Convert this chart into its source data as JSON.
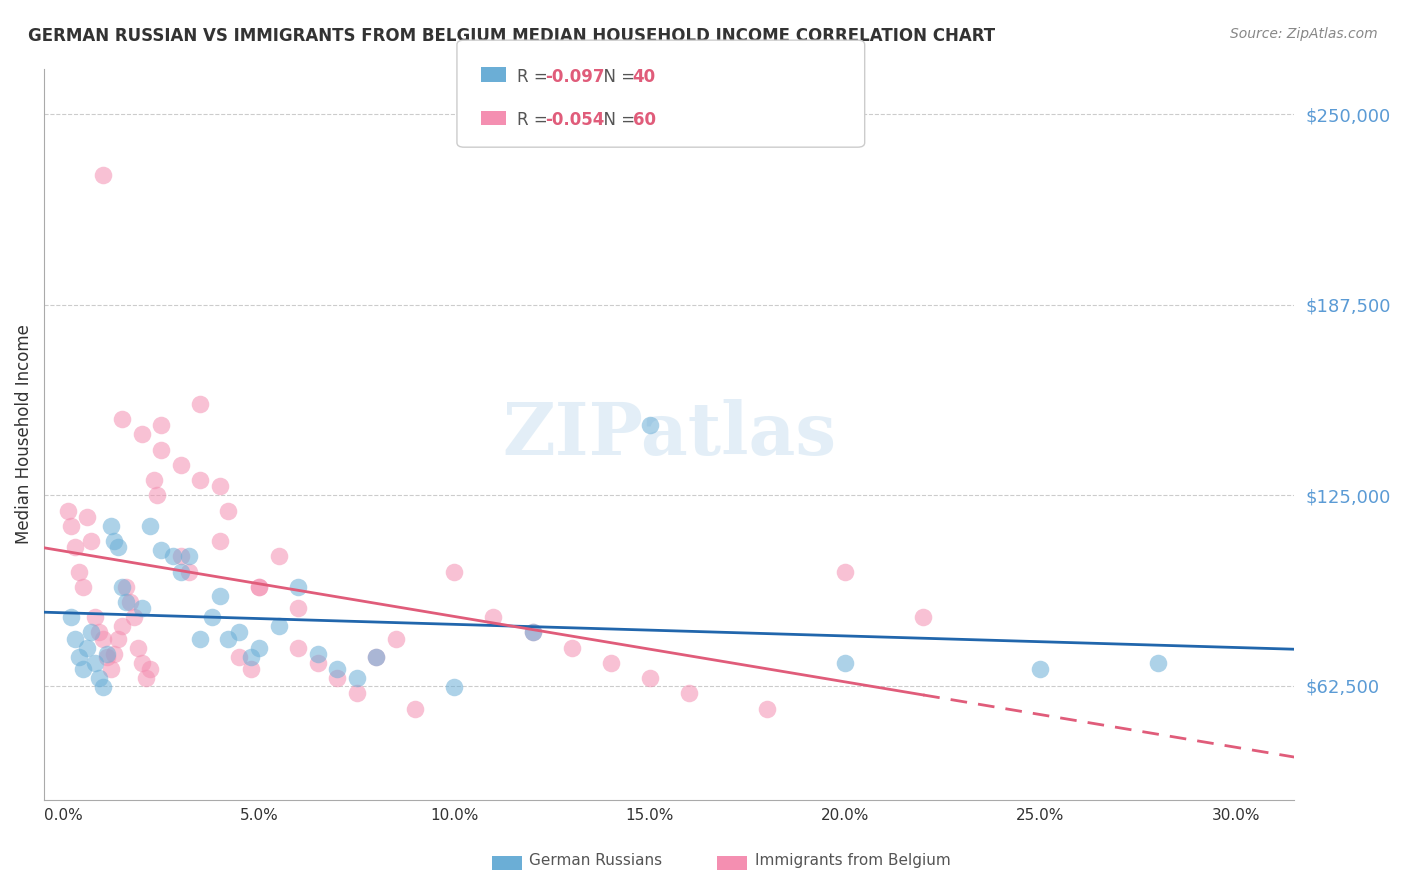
{
  "title": "GERMAN RUSSIAN VS IMMIGRANTS FROM BELGIUM MEDIAN HOUSEHOLD INCOME CORRELATION CHART",
  "source": "Source: ZipAtlas.com",
  "ylabel": "Median Household Income",
  "xlabel_ticks": [
    "0.0%",
    "5.0%",
    "10.0%",
    "15.0%",
    "20.0%",
    "25.0%",
    "30.0%"
  ],
  "xlabel_vals": [
    0.0,
    0.05,
    0.1,
    0.15,
    0.2,
    0.25,
    0.3
  ],
  "ytick_labels": [
    "$62,500",
    "$125,000",
    "$187,500",
    "$250,000"
  ],
  "ytick_vals": [
    62500,
    125000,
    187500,
    250000
  ],
  "ylim": [
    25000,
    265000
  ],
  "xlim": [
    -0.005,
    0.315
  ],
  "watermark": "ZIPatlas",
  "blue_color": "#6baed6",
  "pink_color": "#f48fb1",
  "blue_line_color": "#2166ac",
  "pink_line_color": "#e05c7a",
  "legend1_R": "-0.097",
  "legend1_N": "40",
  "legend2_R": "-0.054",
  "legend2_N": "60",
  "legend1_label": "German Russians",
  "legend2_label": "Immigrants from Belgium",
  "blue_x": [
    0.002,
    0.003,
    0.004,
    0.005,
    0.006,
    0.007,
    0.008,
    0.009,
    0.01,
    0.011,
    0.012,
    0.013,
    0.014,
    0.015,
    0.016,
    0.02,
    0.022,
    0.025,
    0.028,
    0.03,
    0.032,
    0.035,
    0.038,
    0.04,
    0.042,
    0.045,
    0.048,
    0.05,
    0.055,
    0.06,
    0.065,
    0.07,
    0.075,
    0.08,
    0.1,
    0.12,
    0.15,
    0.2,
    0.25,
    0.28
  ],
  "blue_y": [
    85000,
    78000,
    72000,
    68000,
    75000,
    80000,
    70000,
    65000,
    62000,
    73000,
    115000,
    110000,
    108000,
    95000,
    90000,
    88000,
    115000,
    107000,
    105000,
    100000,
    105000,
    78000,
    85000,
    92000,
    78000,
    80000,
    72000,
    75000,
    82000,
    95000,
    73000,
    68000,
    65000,
    72000,
    62000,
    80000,
    148000,
    70000,
    68000,
    70000
  ],
  "pink_x": [
    0.001,
    0.002,
    0.003,
    0.004,
    0.005,
    0.006,
    0.007,
    0.008,
    0.009,
    0.01,
    0.011,
    0.012,
    0.013,
    0.014,
    0.015,
    0.016,
    0.017,
    0.018,
    0.019,
    0.02,
    0.021,
    0.022,
    0.023,
    0.024,
    0.025,
    0.03,
    0.032,
    0.035,
    0.04,
    0.042,
    0.045,
    0.048,
    0.05,
    0.055,
    0.06,
    0.065,
    0.07,
    0.075,
    0.08,
    0.085,
    0.09,
    0.1,
    0.11,
    0.12,
    0.13,
    0.14,
    0.15,
    0.16,
    0.18,
    0.2,
    0.01,
    0.015,
    0.02,
    0.025,
    0.03,
    0.035,
    0.04,
    0.05,
    0.06,
    0.22
  ],
  "pink_y": [
    120000,
    115000,
    108000,
    100000,
    95000,
    118000,
    110000,
    85000,
    80000,
    78000,
    72000,
    68000,
    73000,
    78000,
    82000,
    95000,
    90000,
    85000,
    75000,
    70000,
    65000,
    68000,
    130000,
    125000,
    148000,
    105000,
    100000,
    155000,
    110000,
    120000,
    72000,
    68000,
    95000,
    105000,
    75000,
    70000,
    65000,
    60000,
    72000,
    78000,
    55000,
    100000,
    85000,
    80000,
    75000,
    70000,
    65000,
    60000,
    55000,
    100000,
    230000,
    150000,
    145000,
    140000,
    135000,
    130000,
    128000,
    95000,
    88000,
    85000
  ]
}
